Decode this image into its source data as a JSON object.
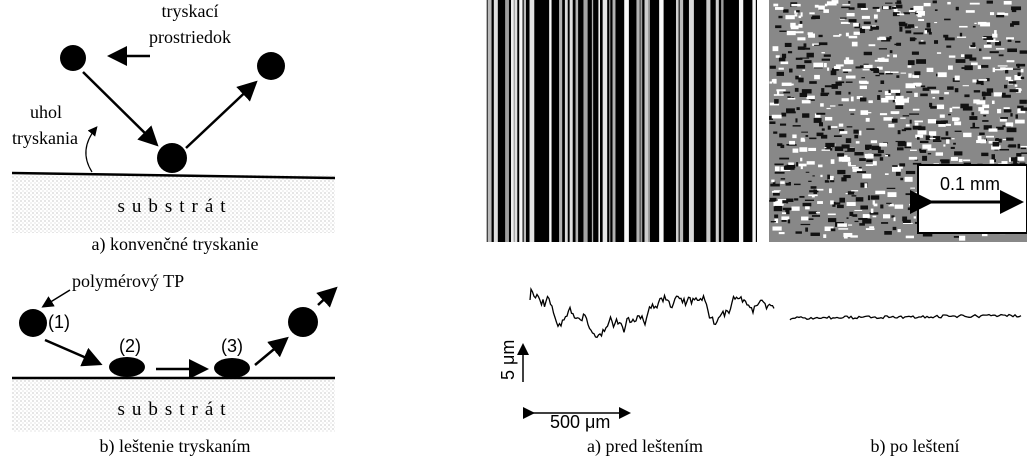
{
  "left": {
    "top": {
      "media_label": [
        "tryskací",
        "prostriedok"
      ],
      "angle_label": [
        "uhol",
        "tryskania"
      ],
      "substrate": "substrát",
      "caption": "a) konvenčné tryskanie"
    },
    "bottom": {
      "media_label": "polymérový TP",
      "steps": [
        "(1)",
        "(2)",
        "(3)"
      ],
      "substrate": "substrát",
      "caption": "b) leštenie tryskaním"
    }
  },
  "right": {
    "scale_bar": "0.1 mm",
    "y_scale": "5 μm",
    "x_scale": "500 μm",
    "captions": [
      "a) pred leštením",
      "b) po leštení"
    ]
  }
}
